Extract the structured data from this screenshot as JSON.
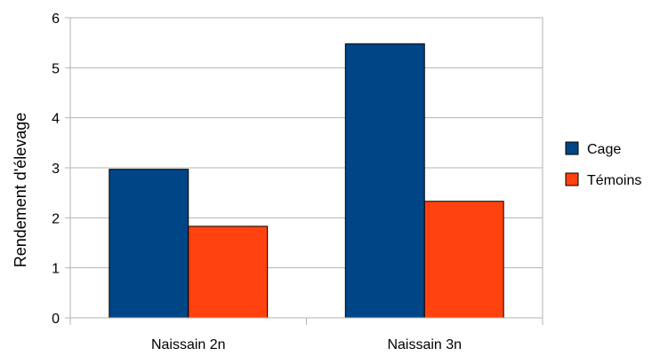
{
  "chart_data": {
    "type": "bar",
    "categories": [
      "Naissain 2n",
      "Naissain 3n"
    ],
    "series": [
      {
        "name": "Cage",
        "values": [
          2.97,
          5.48
        ],
        "color": "#004586"
      },
      {
        "name": "Témoins",
        "values": [
          1.83,
          2.33
        ],
        "color": "#ff420e"
      }
    ],
    "ylabel": "Rendement d'élevage",
    "xlabel": "",
    "ylim": [
      0,
      6
    ],
    "yticks": [
      0,
      1,
      2,
      3,
      4,
      5,
      6
    ],
    "grid": true,
    "legend": "right"
  }
}
